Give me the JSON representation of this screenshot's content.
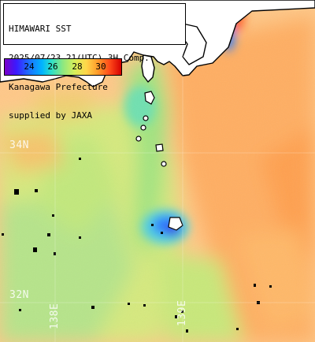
{
  "header": {
    "lines": [
      "HIMAWARI SST",
      "2025/07/23 21(UTC) 3H Comp.",
      "Kanagawa Prefecture",
      "supplied by JAXA"
    ]
  },
  "colorbar": {
    "ticks": [
      "24",
      "26",
      "28",
      "30"
    ]
  },
  "grid_labels": {
    "lat_34": "34N",
    "lat_32": "32N",
    "lon_138": "138E",
    "lon_139": "139E"
  },
  "colors": {
    "land": "#ffffff",
    "coast": "#000000",
    "missing": "#000000",
    "warm": "#ffb060",
    "neutral": "#d8e880",
    "cool": "#9be47a",
    "cold": "#1f6bff"
  }
}
